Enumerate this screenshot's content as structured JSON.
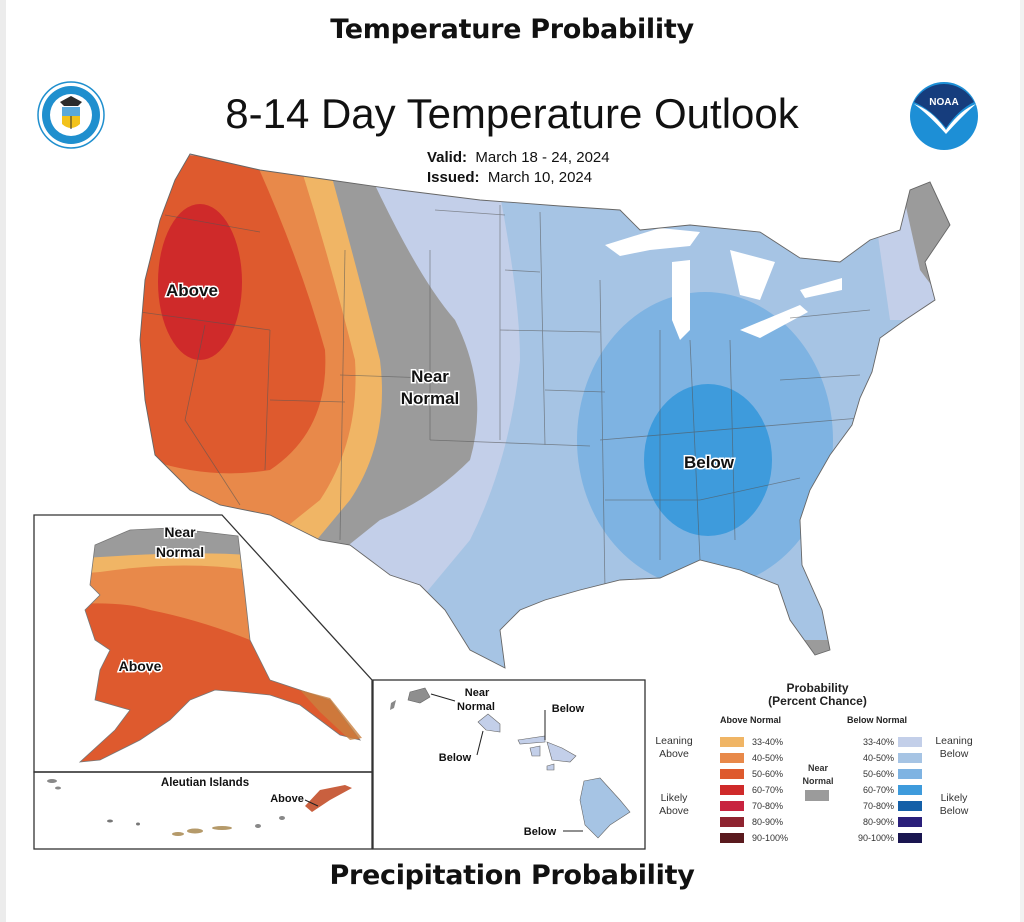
{
  "page": {
    "heading_top": "Temperature Probability",
    "heading_bottom": "Precipitation Probability"
  },
  "map": {
    "title": "8-14 Day Temperature Outlook",
    "valid_label": "Valid:",
    "valid_value": "March 18 - 24, 2024",
    "issued_label": "Issued:",
    "issued_value": "March 10, 2024",
    "logos": {
      "left": "department-of-commerce-seal",
      "right": "noaa-logo",
      "noaa_text": "NOAA"
    },
    "region_labels": {
      "conus_above": "Above",
      "conus_near_1": "Near",
      "conus_near_2": "Normal",
      "conus_below": "Below",
      "alaska_near_1": "Near",
      "alaska_near_2": "Normal",
      "alaska_above": "Above",
      "aleutian_title": "Aleutian Islands",
      "aleutian_above": "Above",
      "hawaii_near_1": "Near",
      "hawaii_near_2": "Normal",
      "hawaii_below_oahu": "Below",
      "hawaii_below_maui": "Below",
      "hawaii_below_big": "Below"
    },
    "colors": {
      "above_33_40": "#f0b565",
      "above_40_50": "#e8894a",
      "above_50_60": "#de5a2e",
      "above_60_70": "#cf2a2a",
      "above_70_80": "#c8233f",
      "above_80_90": "#8f2430",
      "above_90_100": "#5a1a1e",
      "near_normal": "#9b9b9b",
      "below_33_40": "#c3cfe9",
      "below_40_50": "#a6c4e4",
      "below_50_60": "#7eb3e2",
      "below_60_70": "#3e9bdc",
      "below_70_80": "#1560a8",
      "below_80_90": "#2a1f7a",
      "below_90_100": "#1a1650"
    }
  },
  "legend": {
    "title_1": "Probability",
    "title_2": "(Percent Chance)",
    "above_header": "Above Normal",
    "below_header": "Below Normal",
    "near_label_1": "Near",
    "near_label_2": "Normal",
    "leaning_above_1": "Leaning",
    "leaning_above_2": "Above",
    "likely_above_1": "Likely",
    "likely_above_2": "Above",
    "leaning_below_1": "Leaning",
    "leaning_below_2": "Below",
    "likely_below_1": "Likely",
    "likely_below_2": "Below",
    "above_ranges": [
      "33-40%",
      "40-50%",
      "50-60%",
      "60-70%",
      "70-80%",
      "80-90%",
      "90-100%"
    ],
    "below_ranges": [
      "33-40%",
      "40-50%",
      "50-60%",
      "60-70%",
      "70-80%",
      "80-90%",
      "90-100%"
    ]
  }
}
